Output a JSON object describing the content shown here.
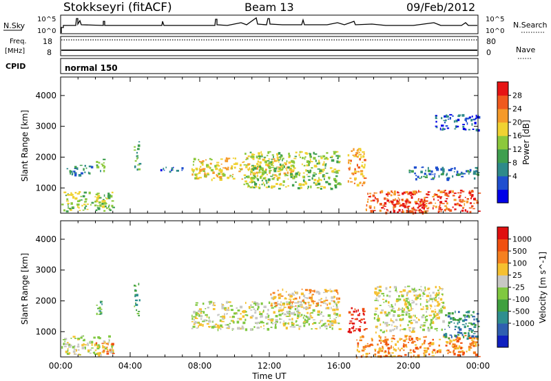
{
  "header": {
    "station": "Stokkseyri (fitACF)",
    "beam": "Beam 13",
    "date": "09/Feb/2012"
  },
  "strip": {
    "nsky_label": "N.Sky",
    "nsky_ticks": [
      "10^5",
      "10^0"
    ],
    "nsearch_label": "N.Search",
    "nsearch_ticks": [
      "10^5",
      "10^0"
    ],
    "freq_label": "Freq.",
    "freq_unit": "[MHz]",
    "freq_ticks": [
      "18",
      "8"
    ],
    "nave_label": "Nave",
    "nave_ticks": [
      "80",
      "0"
    ],
    "cpid_label": "CPID",
    "cpid_value": "normal 150"
  },
  "chart_data": [
    {
      "type": "heatmap",
      "panel": "power",
      "xlabel": "",
      "ylabel": "Slant Range [km]",
      "xlim": [
        0,
        24
      ],
      "ylim": [
        180,
        4600
      ],
      "yticks": [
        1000,
        2000,
        3000,
        4000
      ],
      "colorbar": {
        "label": "Power [dB]",
        "ticks": [
          "28",
          "24",
          "20",
          "16",
          "12",
          "8",
          "4"
        ],
        "colors": [
          "#0000e8",
          "#1f4fcf",
          "#2e8a8a",
          "#3f9f4f",
          "#8cc83c",
          "#f0d232",
          "#f59a2a",
          "#f05a1e",
          "#e61414"
        ]
      },
      "regions": [
        {
          "t": [
            0.0,
            3.0
          ],
          "r": [
            260,
            900
          ],
          "level": 4
        },
        {
          "t": [
            0.3,
            1.8
          ],
          "r": [
            1450,
            1750
          ],
          "level": 2
        },
        {
          "t": [
            2.0,
            2.5
          ],
          "r": [
            1550,
            2000
          ],
          "level": 3
        },
        {
          "t": [
            4.2,
            4.5
          ],
          "r": [
            1500,
            2600
          ],
          "level": 3
        },
        {
          "t": [
            5.6,
            7.2
          ],
          "r": [
            1550,
            1700
          ],
          "level": 1
        },
        {
          "t": [
            7.5,
            13.5
          ],
          "r": [
            1300,
            2000
          ],
          "level": 5
        },
        {
          "t": [
            10.5,
            16.0
          ],
          "r": [
            1000,
            2200
          ],
          "level": 4
        },
        {
          "t": [
            16.5,
            17.5
          ],
          "r": [
            1100,
            2300
          ],
          "level": 6
        },
        {
          "t": [
            17.5,
            24.0
          ],
          "r": [
            220,
            950
          ],
          "level": 7
        },
        {
          "t": [
            18.5,
            21.0
          ],
          "r": [
            220,
            650
          ],
          "level": 8
        },
        {
          "t": [
            20.0,
            24.0
          ],
          "r": [
            1300,
            1700
          ],
          "level": 2
        },
        {
          "t": [
            21.5,
            24.0
          ],
          "r": [
            2900,
            3400
          ],
          "level": 1
        }
      ]
    },
    {
      "type": "heatmap",
      "panel": "velocity",
      "xlabel": "Time UT",
      "ylabel": "Slant Range [km]",
      "xlim": [
        0,
        24
      ],
      "ylim": [
        180,
        4600
      ],
      "xticks": [
        "00:00",
        "04:00",
        "08:00",
        "12:00",
        "16:00",
        "20:00",
        "00:00"
      ],
      "yticks": [
        1000,
        2000,
        3000,
        4000
      ],
      "colorbar": {
        "label": "Velocity [m s^-1]",
        "ticks": [
          "1000",
          "500",
          "100",
          "25",
          "-25",
          "-100",
          "-500",
          "-1000"
        ],
        "colors": [
          "#1020c0",
          "#2f5fb0",
          "#2f8f8f",
          "#3fa03f",
          "#80c840",
          "#c8c8c4",
          "#f5c030",
          "#f58020",
          "#f05010",
          "#e01010"
        ]
      },
      "regions": [
        {
          "t": [
            0.0,
            3.0
          ],
          "r": [
            260,
            900
          ],
          "level": 5
        },
        {
          "t": [
            2.0,
            3.0
          ],
          "r": [
            300,
            700
          ],
          "level": 7
        },
        {
          "t": [
            2.0,
            2.5
          ],
          "r": [
            1550,
            2000
          ],
          "level": 3
        },
        {
          "t": [
            4.2,
            4.5
          ],
          "r": [
            1500,
            2600
          ],
          "level": 3
        },
        {
          "t": [
            7.5,
            16.0
          ],
          "r": [
            1100,
            2000
          ],
          "level": 5
        },
        {
          "t": [
            12.0,
            16.0
          ],
          "r": [
            1800,
            2400
          ],
          "level": 6
        },
        {
          "t": [
            16.5,
            17.5
          ],
          "r": [
            1000,
            1800
          ],
          "level": 9
        },
        {
          "t": [
            17.0,
            24.0
          ],
          "r": [
            200,
            900
          ],
          "level": 7
        },
        {
          "t": [
            18.0,
            22.0
          ],
          "r": [
            1000,
            2500
          ],
          "level": 5
        },
        {
          "t": [
            22.0,
            24.0
          ],
          "r": [
            800,
            1700
          ],
          "level": 2
        }
      ]
    }
  ]
}
